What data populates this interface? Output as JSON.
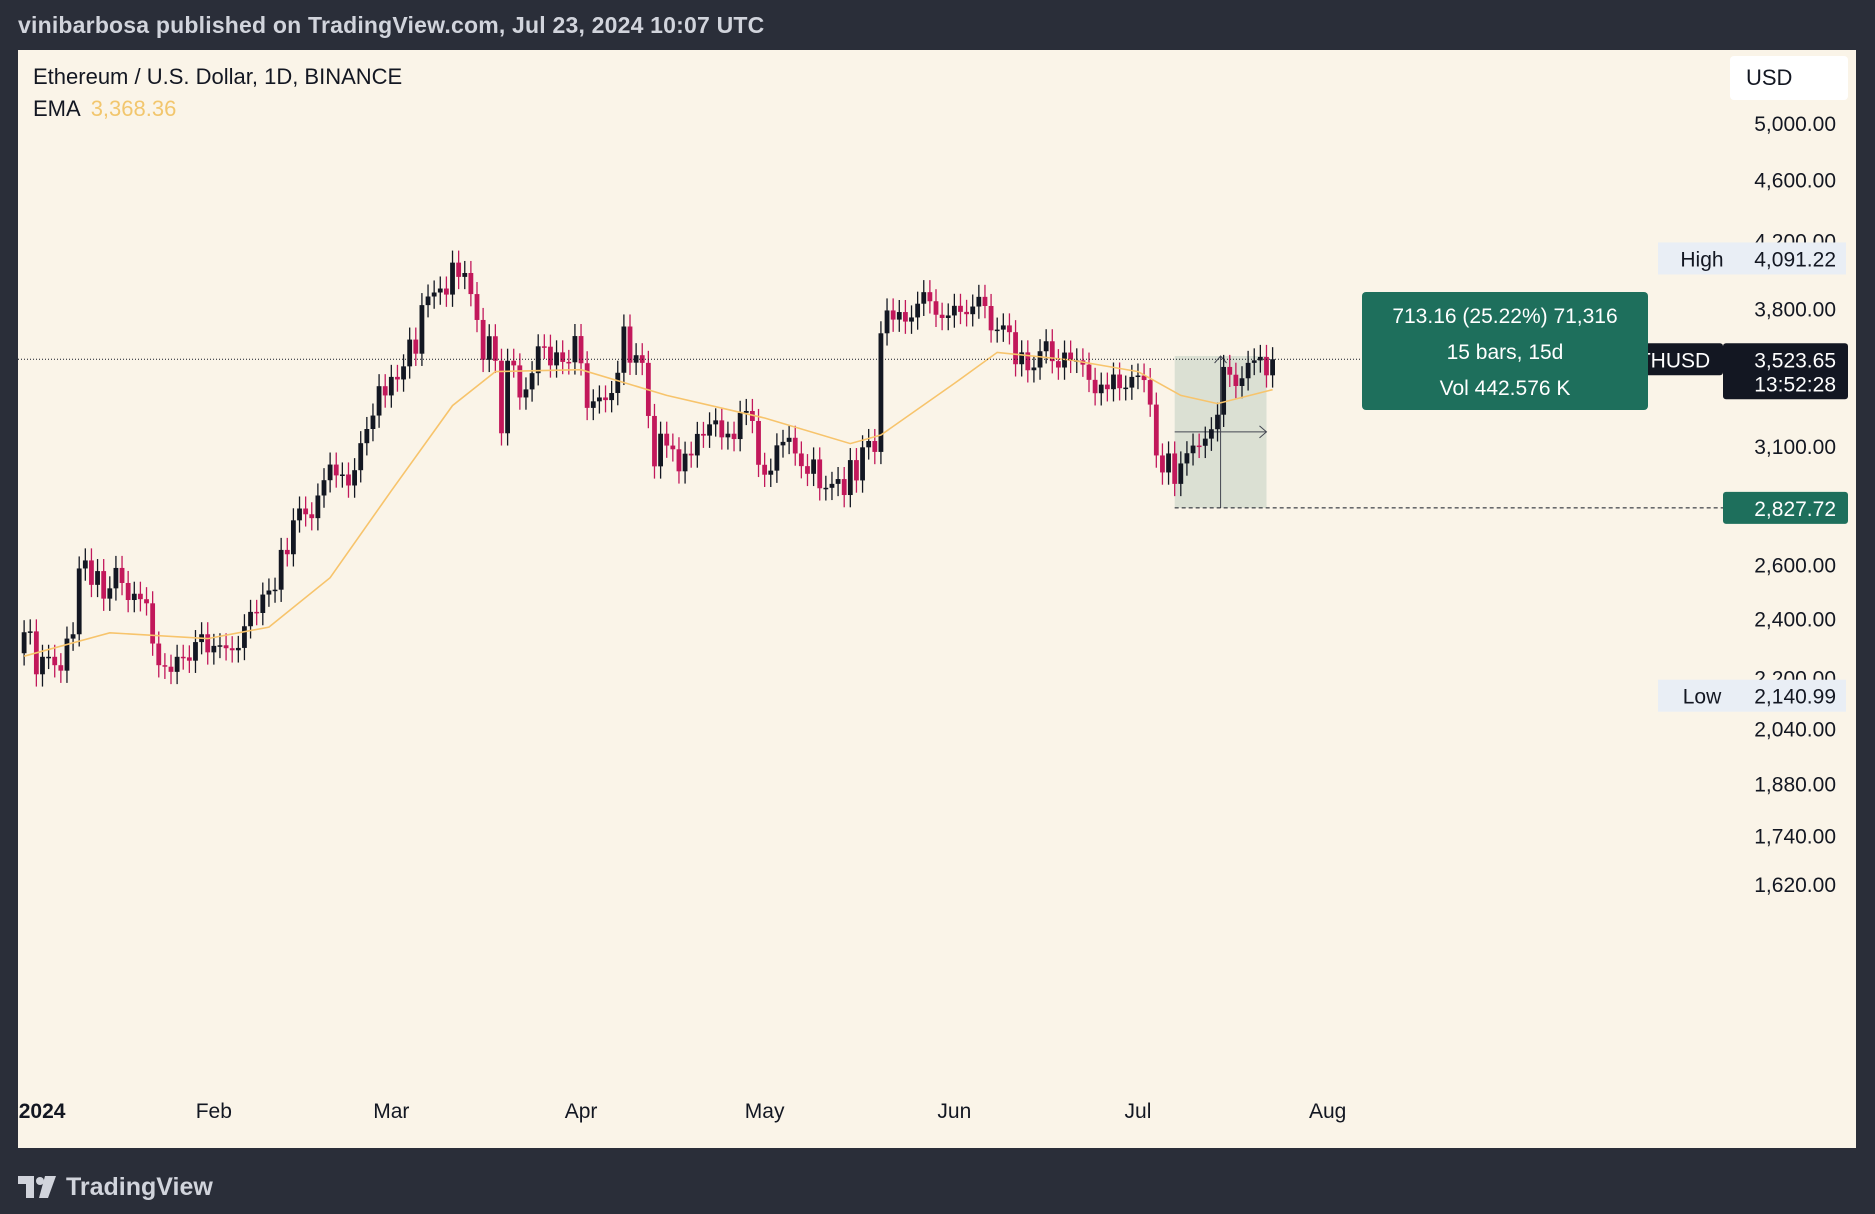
{
  "header": {
    "published_line": "vinibarbosa published on TradingView.com, Jul 23, 2024 10:07 UTC"
  },
  "legend": {
    "symbol": "Ethereum / U.S. Dollar, 1D, BINANCE",
    "ema_label": "EMA",
    "ema_value": "3,368.36"
  },
  "currency": "USD",
  "footer": {
    "brand": "TradingView"
  },
  "colors": {
    "background": "#faf4e8",
    "frame": "#2a2e39",
    "up_candle": "#131722",
    "down_candle": "#c2185b",
    "ema_line": "#f7c46c",
    "measure_box": "#1e6f5c",
    "measure_fill": "#d5dccf"
  },
  "chart_data": {
    "type": "candlestick",
    "title": "",
    "xlabel": "",
    "ylabel": "",
    "y_scale": "log",
    "ylim": [
      1520,
      5400
    ],
    "x_tick_labels": [
      "2024",
      "Feb",
      "Mar",
      "Apr",
      "May",
      "Jun",
      "Jul",
      "Aug"
    ],
    "x_tick_dates": [
      "2024-01-01",
      "2024-02-01",
      "2024-03-01",
      "2024-04-01",
      "2024-05-01",
      "2024-06-01",
      "2024-07-01",
      "2024-08-01"
    ],
    "x_start_date": "2023-12-31",
    "y_tick_labels": [
      "5,000.00",
      "4,600.00",
      "4,200.00",
      "3,800.00",
      "3,100.00",
      "2,600.00",
      "2,400.00",
      "2,200.00",
      "2,040.00",
      "1,880.00",
      "1,740.00",
      "1,620.00"
    ],
    "y_tick_values": [
      5000,
      4600,
      4200,
      3800,
      3100,
      2600,
      2400,
      2200,
      2040,
      1880,
      1740,
      1620
    ],
    "close_series": [
      [
        "2024-01-01",
        2352
      ],
      [
        "2024-01-02",
        2355
      ],
      [
        "2024-01-03",
        2210
      ],
      [
        "2024-01-04",
        2268
      ],
      [
        "2024-01-05",
        2268
      ],
      [
        "2024-01-06",
        2240
      ],
      [
        "2024-01-07",
        2222
      ],
      [
        "2024-01-08",
        2330
      ],
      [
        "2024-01-09",
        2345
      ],
      [
        "2024-01-10",
        2585
      ],
      [
        "2024-01-11",
        2616
      ],
      [
        "2024-01-12",
        2523
      ],
      [
        "2024-01-13",
        2575
      ],
      [
        "2024-01-14",
        2472
      ],
      [
        "2024-01-15",
        2510
      ],
      [
        "2024-01-16",
        2587
      ],
      [
        "2024-01-17",
        2530
      ],
      [
        "2024-01-18",
        2467
      ],
      [
        "2024-01-19",
        2490
      ],
      [
        "2024-01-20",
        2470
      ],
      [
        "2024-01-21",
        2455
      ],
      [
        "2024-01-22",
        2313
      ],
      [
        "2024-01-23",
        2240
      ],
      [
        "2024-01-24",
        2235
      ],
      [
        "2024-01-25",
        2218
      ],
      [
        "2024-01-26",
        2268
      ],
      [
        "2024-01-27",
        2266
      ],
      [
        "2024-01-28",
        2255
      ],
      [
        "2024-01-29",
        2318
      ],
      [
        "2024-01-30",
        2345
      ],
      [
        "2024-01-31",
        2283
      ],
      [
        "2024-02-01",
        2305
      ],
      [
        "2024-02-02",
        2307
      ],
      [
        "2024-02-03",
        2297
      ],
      [
        "2024-02-04",
        2290
      ],
      [
        "2024-02-05",
        2298
      ],
      [
        "2024-02-06",
        2373
      ],
      [
        "2024-02-07",
        2424
      ],
      [
        "2024-02-08",
        2420
      ],
      [
        "2024-02-09",
        2487
      ],
      [
        "2024-02-10",
        2502
      ],
      [
        "2024-02-11",
        2505
      ],
      [
        "2024-02-12",
        2657
      ],
      [
        "2024-02-13",
        2640
      ],
      [
        "2024-02-14",
        2776
      ],
      [
        "2024-02-15",
        2825
      ],
      [
        "2024-02-16",
        2801
      ],
      [
        "2024-02-17",
        2785
      ],
      [
        "2024-02-18",
        2880
      ],
      [
        "2024-02-19",
        2946
      ],
      [
        "2024-02-20",
        3015
      ],
      [
        "2024-02-21",
        2967
      ],
      [
        "2024-02-22",
        2971
      ],
      [
        "2024-02-23",
        2923
      ],
      [
        "2024-02-24",
        2990
      ],
      [
        "2024-02-25",
        3112
      ],
      [
        "2024-02-26",
        3178
      ],
      [
        "2024-02-27",
        3242
      ],
      [
        "2024-02-28",
        3386
      ],
      [
        "2024-02-29",
        3340
      ],
      [
        "2024-03-01",
        3433
      ],
      [
        "2024-03-02",
        3420
      ],
      [
        "2024-03-03",
        3487
      ],
      [
        "2024-03-04",
        3628
      ],
      [
        "2024-03-05",
        3553
      ],
      [
        "2024-03-06",
        3818
      ],
      [
        "2024-03-07",
        3867
      ],
      [
        "2024-03-08",
        3890
      ],
      [
        "2024-03-09",
        3913
      ],
      [
        "2024-03-10",
        3878
      ],
      [
        "2024-03-11",
        4066
      ],
      [
        "2024-03-12",
        3981
      ],
      [
        "2024-03-13",
        4004
      ],
      [
        "2024-03-14",
        3881
      ],
      [
        "2024-03-15",
        3735
      ],
      [
        "2024-03-16",
        3521
      ],
      [
        "2024-03-17",
        3646
      ],
      [
        "2024-03-18",
        3516
      ],
      [
        "2024-03-19",
        3158
      ],
      [
        "2024-03-20",
        3516
      ],
      [
        "2024-03-21",
        3492
      ],
      [
        "2024-03-22",
        3330
      ],
      [
        "2024-03-23",
        3370
      ],
      [
        "2024-03-24",
        3452
      ],
      [
        "2024-03-25",
        3592
      ],
      [
        "2024-03-26",
        3590
      ],
      [
        "2024-03-27",
        3492
      ],
      [
        "2024-03-28",
        3560
      ],
      [
        "2024-03-29",
        3510
      ],
      [
        "2024-03-30",
        3508
      ],
      [
        "2024-03-31",
        3647
      ],
      [
        "2024-04-01",
        3503
      ],
      [
        "2024-04-02",
        3279
      ],
      [
        "2024-04-03",
        3311
      ],
      [
        "2024-04-04",
        3330
      ],
      [
        "2024-04-05",
        3317
      ],
      [
        "2024-04-06",
        3352
      ],
      [
        "2024-04-07",
        3454
      ],
      [
        "2024-04-08",
        3699
      ],
      [
        "2024-04-09",
        3506
      ],
      [
        "2024-04-10",
        3545
      ],
      [
        "2024-04-11",
        3505
      ],
      [
        "2024-04-12",
        3240
      ],
      [
        "2024-04-13",
        3007
      ],
      [
        "2024-04-14",
        3156
      ],
      [
        "2024-04-15",
        3101
      ],
      [
        "2024-04-16",
        3084
      ],
      [
        "2024-04-17",
        2985
      ],
      [
        "2024-04-18",
        3064
      ],
      [
        "2024-04-19",
        3056
      ],
      [
        "2024-04-20",
        3155
      ],
      [
        "2024-04-21",
        3147
      ],
      [
        "2024-04-22",
        3200
      ],
      [
        "2024-04-23",
        3219
      ],
      [
        "2024-04-24",
        3139
      ],
      [
        "2024-04-25",
        3156
      ],
      [
        "2024-04-26",
        3131
      ],
      [
        "2024-04-27",
        3255
      ],
      [
        "2024-04-28",
        3264
      ],
      [
        "2024-04-29",
        3216
      ],
      [
        "2024-04-30",
        3014
      ],
      [
        "2024-05-01",
        2970
      ],
      [
        "2024-05-02",
        2988
      ],
      [
        "2024-05-03",
        3102
      ],
      [
        "2024-05-04",
        3118
      ],
      [
        "2024-05-05",
        3137
      ],
      [
        "2024-05-06",
        3065
      ],
      [
        "2024-05-07",
        3008
      ],
      [
        "2024-05-08",
        2974
      ],
      [
        "2024-05-09",
        3038
      ],
      [
        "2024-05-10",
        2911
      ],
      [
        "2024-05-11",
        2913
      ],
      [
        "2024-05-12",
        2930
      ],
      [
        "2024-05-13",
        2951
      ],
      [
        "2024-05-14",
        2882
      ],
      [
        "2024-05-15",
        3035
      ],
      [
        "2024-05-16",
        2945
      ],
      [
        "2024-05-17",
        3093
      ],
      [
        "2024-05-18",
        3122
      ],
      [
        "2024-05-19",
        3072
      ],
      [
        "2024-05-20",
        3662
      ],
      [
        "2024-05-21",
        3788
      ],
      [
        "2024-05-22",
        3737
      ],
      [
        "2024-05-23",
        3779
      ],
      [
        "2024-05-24",
        3726
      ],
      [
        "2024-05-25",
        3749
      ],
      [
        "2024-05-26",
        3826
      ],
      [
        "2024-05-27",
        3892
      ],
      [
        "2024-05-28",
        3840
      ],
      [
        "2024-05-29",
        3764
      ],
      [
        "2024-05-30",
        3746
      ],
      [
        "2024-05-31",
        3760
      ],
      [
        "2024-06-01",
        3814
      ],
      [
        "2024-06-02",
        3780
      ],
      [
        "2024-06-03",
        3767
      ],
      [
        "2024-06-04",
        3810
      ],
      [
        "2024-06-05",
        3865
      ],
      [
        "2024-06-06",
        3813
      ],
      [
        "2024-06-07",
        3678
      ],
      [
        "2024-06-08",
        3682
      ],
      [
        "2024-06-09",
        3705
      ],
      [
        "2024-06-10",
        3668
      ],
      [
        "2024-06-11",
        3498
      ],
      [
        "2024-06-12",
        3560
      ],
      [
        "2024-06-13",
        3467
      ],
      [
        "2024-06-14",
        3481
      ],
      [
        "2024-06-15",
        3566
      ],
      [
        "2024-06-16",
        3619
      ],
      [
        "2024-06-17",
        3514
      ],
      [
        "2024-06-18",
        3481
      ],
      [
        "2024-06-19",
        3559
      ],
      [
        "2024-06-20",
        3516
      ],
      [
        "2024-06-21",
        3518
      ],
      [
        "2024-06-22",
        3496
      ],
      [
        "2024-06-23",
        3418
      ],
      [
        "2024-06-24",
        3351
      ],
      [
        "2024-06-25",
        3394
      ],
      [
        "2024-06-26",
        3371
      ],
      [
        "2024-06-27",
        3445
      ],
      [
        "2024-06-28",
        3376
      ],
      [
        "2024-06-29",
        3379
      ],
      [
        "2024-06-30",
        3433
      ],
      [
        "2024-07-01",
        3440
      ],
      [
        "2024-07-02",
        3417
      ],
      [
        "2024-07-03",
        3295
      ],
      [
        "2024-07-04",
        3056
      ],
      [
        "2024-07-05",
        2980
      ],
      [
        "2024-07-06",
        3065
      ],
      [
        "2024-07-07",
        2930
      ],
      [
        "2024-07-08",
        3020
      ],
      [
        "2024-07-09",
        3066
      ],
      [
        "2024-07-10",
        3101
      ],
      [
        "2024-07-11",
        3100
      ],
      [
        "2024-07-12",
        3133
      ],
      [
        "2024-07-13",
        3177
      ],
      [
        "2024-07-14",
        3246
      ],
      [
        "2024-07-15",
        3484
      ],
      [
        "2024-07-16",
        3444
      ],
      [
        "2024-07-17",
        3387
      ],
      [
        "2024-07-18",
        3426
      ],
      [
        "2024-07-19",
        3505
      ],
      [
        "2024-07-20",
        3518
      ],
      [
        "2024-07-21",
        3536
      ],
      [
        "2024-07-22",
        3441
      ],
      [
        "2024-07-23",
        3524
      ]
    ],
    "ema_series": [
      [
        "2024-01-01",
        2270
      ],
      [
        "2024-01-15",
        2350
      ],
      [
        "2024-01-31",
        2330
      ],
      [
        "2024-02-10",
        2370
      ],
      [
        "2024-02-20",
        2550
      ],
      [
        "2024-03-01",
        2900
      ],
      [
        "2024-03-11",
        3290
      ],
      [
        "2024-03-18",
        3460
      ],
      [
        "2024-04-01",
        3470
      ],
      [
        "2024-04-15",
        3340
      ],
      [
        "2024-05-01",
        3230
      ],
      [
        "2024-05-15",
        3110
      ],
      [
        "2024-05-20",
        3150
      ],
      [
        "2024-06-01",
        3400
      ],
      [
        "2024-06-08",
        3560
      ],
      [
        "2024-06-20",
        3520
      ],
      [
        "2024-07-01",
        3460
      ],
      [
        "2024-07-08",
        3340
      ],
      [
        "2024-07-14",
        3300
      ],
      [
        "2024-07-23",
        3368.36
      ]
    ],
    "price_labels": {
      "high_label": "High",
      "high_value": "4,091.22",
      "low_label": "Low",
      "low_value": "2,140.99",
      "last_symbol": "ETHUSD",
      "last_value": "3,523.65",
      "countdown": "13:52:28",
      "measure_start_value": "2,827.72"
    },
    "measure_tool": {
      "start_date": "2024-07-07",
      "end_date": "2024-07-22",
      "low": 2827.72,
      "high": 3540.88,
      "line1": "713.16 (25.22%) 71,316",
      "line2": "15 bars, 15d",
      "line3": "Vol 442.576 K"
    },
    "last_price": 3523.65
  }
}
